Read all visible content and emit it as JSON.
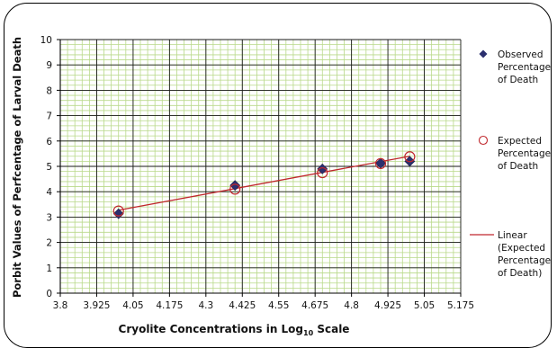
{
  "chart_data": {
    "type": "scatter",
    "title": "",
    "xlabel": {
      "main": "Cryolite Concentrations in Log",
      "sub": "10",
      "tail": " Scale"
    },
    "ylabel": "Porbit Values of Perfcentage of  Larval Death",
    "xlim": [
      3.8,
      5.175
    ],
    "ylim": [
      0,
      10
    ],
    "x_ticks": [
      "3.8",
      "3.925",
      "4.05",
      "4.175",
      "4.3",
      "4.425",
      "4.55",
      "4.675",
      "4.8",
      "4.925",
      "5.05",
      "5.175"
    ],
    "y_ticks": [
      "0",
      "1",
      "2",
      "3",
      "4",
      "5",
      "6",
      "7",
      "8",
      "9",
      "10"
    ],
    "grid": true,
    "legend_position": "right",
    "series": [
      {
        "name": "Observed Percentage of Death",
        "legend_lines": [
          "Observed",
          "Percentage",
          "of Death"
        ],
        "marker": "diamond",
        "color": "#2b2f6e",
        "x": [
          4.0,
          4.4,
          4.7,
          4.9,
          5.0
        ],
        "y": [
          3.13,
          4.25,
          4.9,
          5.12,
          5.2
        ]
      },
      {
        "name": "Expected Percentage of Death",
        "legend_lines": [
          "Expected",
          "Percentage",
          "of Death"
        ],
        "marker": "open-circle",
        "color": "#c0282d",
        "x": [
          4.0,
          4.4,
          4.7,
          4.9,
          5.0
        ],
        "y": [
          3.24,
          4.1,
          4.75,
          5.11,
          5.38
        ]
      },
      {
        "name": "Linear (Expected Percentage of Death)",
        "legend_lines": [
          "Linear",
          "(Expected",
          "Percentage",
          "of Death)"
        ],
        "marker": "line",
        "color": "#c0282d",
        "x": [
          4.0,
          5.0
        ],
        "y": [
          3.27,
          5.4
        ]
      }
    ]
  }
}
